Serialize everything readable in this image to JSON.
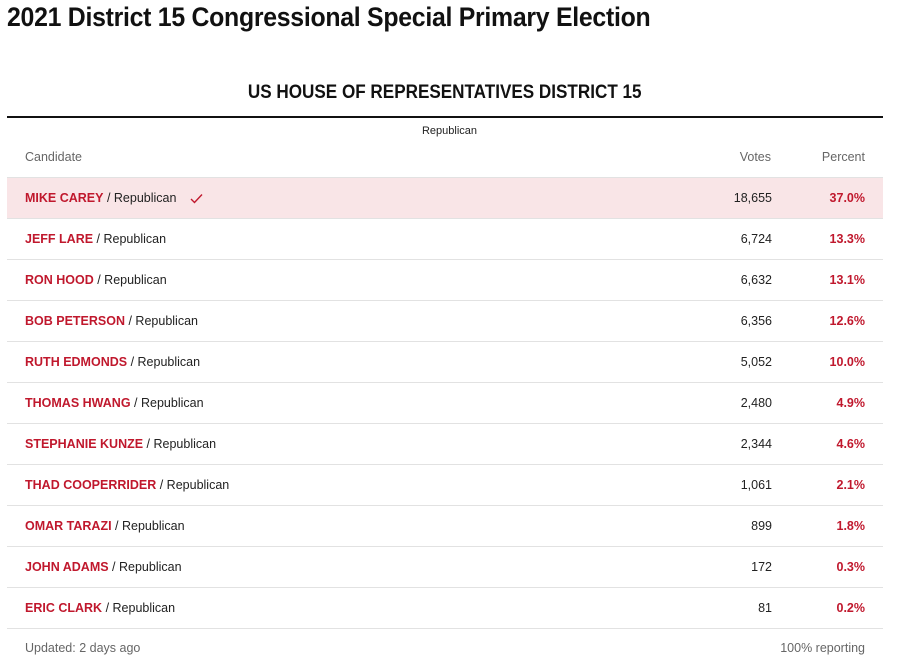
{
  "page": {
    "title": "2021 District 15 Congressional Special Primary Election"
  },
  "race": {
    "title": "US HOUSE OF REPRESENTATIVES DISTRICT 15",
    "party": "Republican",
    "headers": {
      "candidate": "Candidate",
      "votes": "Votes",
      "percent": "Percent"
    },
    "candidates": [
      {
        "name": "MIKE CAREY",
        "party": " / Republican",
        "votes": "18,655",
        "percent": "37.0%",
        "winner": true
      },
      {
        "name": "JEFF LARE",
        "party": " / Republican",
        "votes": "6,724",
        "percent": "13.3%",
        "winner": false
      },
      {
        "name": "RON HOOD",
        "party": " / Republican",
        "votes": "6,632",
        "percent": "13.1%",
        "winner": false
      },
      {
        "name": "BOB PETERSON",
        "party": " / Republican",
        "votes": "6,356",
        "percent": "12.6%",
        "winner": false
      },
      {
        "name": "RUTH EDMONDS",
        "party": " / Republican",
        "votes": "5,052",
        "percent": "10.0%",
        "winner": false
      },
      {
        "name": "THOMAS HWANG",
        "party": " / Republican",
        "votes": "2,480",
        "percent": "4.9%",
        "winner": false
      },
      {
        "name": "STEPHANIE KUNZE",
        "party": " / Republican",
        "votes": "2,344",
        "percent": "4.6%",
        "winner": false
      },
      {
        "name": "THAD COOPERRIDER",
        "party": " / Republican",
        "votes": "1,061",
        "percent": "2.1%",
        "winner": false
      },
      {
        "name": "OMAR TARAZI",
        "party": " / Republican",
        "votes": "899",
        "percent": "1.8%",
        "winner": false
      },
      {
        "name": "JOHN ADAMS",
        "party": " / Republican",
        "votes": "172",
        "percent": "0.3%",
        "winner": false
      },
      {
        "name": "ERIC CLARK",
        "party": " / Republican",
        "votes": "81",
        "percent": "0.2%",
        "winner": false
      }
    ],
    "footer": {
      "updated": "Updated: 2 days ago",
      "reporting": "100% reporting"
    }
  },
  "colors": {
    "accent": "#c0182d",
    "winner_row_bg": "#f9e5e7"
  },
  "icons": {
    "winner": "checkmark-icon"
  }
}
